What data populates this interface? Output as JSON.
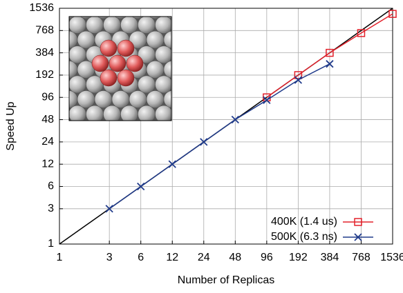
{
  "chart_data": {
    "type": "line",
    "log_scale": true,
    "grid": true,
    "legend_position": "lower right",
    "x_label": "Number of Replicas",
    "y_label": "Speed Up",
    "xlim": [
      1,
      1536
    ],
    "ylim": [
      1,
      1536
    ],
    "xticks": [
      1,
      3,
      6,
      12,
      24,
      48,
      96,
      192,
      384,
      768,
      1536
    ],
    "yticks": [
      1,
      3,
      6,
      12,
      24,
      48,
      96,
      192,
      384,
      768,
      1536
    ],
    "series": [
      {
        "name": "400K (1.4 us)",
        "color": "#e3202a",
        "marker": "square",
        "x": [
          96,
          192,
          384,
          768,
          1536
        ],
        "values": [
          96,
          192,
          384,
          710,
          1290
        ]
      },
      {
        "name": "500K (6.3 ns)",
        "color": "#1f3a8a",
        "marker": "x",
        "x": [
          3,
          6,
          12,
          24,
          48,
          96,
          192,
          384
        ],
        "values": [
          3,
          6,
          12,
          24,
          48,
          88,
          165,
          272
        ]
      }
    ]
  }
}
